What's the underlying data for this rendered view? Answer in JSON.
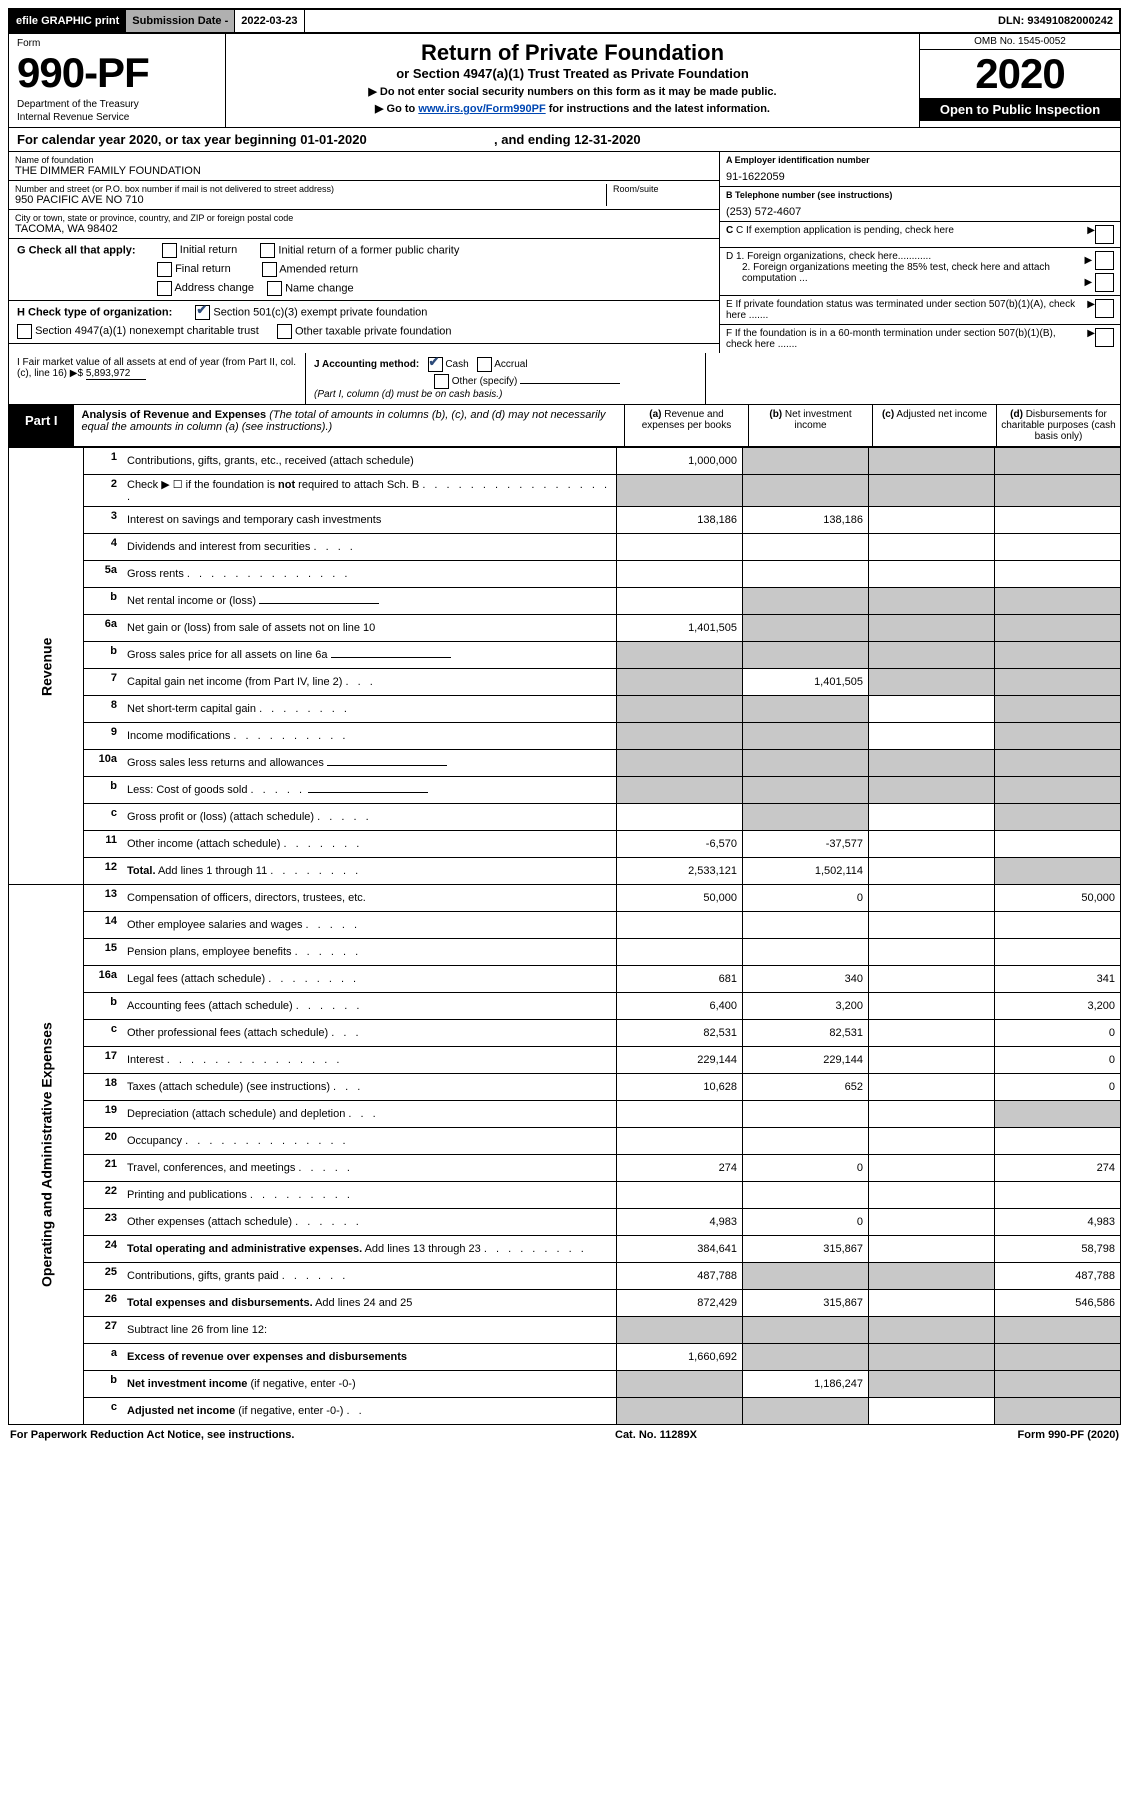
{
  "top": {
    "efile": "efile GRAPHIC print",
    "sub_lbl": "Submission Date - ",
    "sub_date": "2022-03-23",
    "dln": "DLN: 93491082000242"
  },
  "header": {
    "form_word": "Form",
    "form_num": "990-PF",
    "dept1": "Department of the Treasury",
    "dept2": "Internal Revenue Service",
    "title": "Return of Private Foundation",
    "sub1": "or Section 4947(a)(1) Trust Treated as Private Foundation",
    "sub2a": "▶ Do not enter social security numbers on this form as it may be made public.",
    "sub2b": "▶ Go to ",
    "link": "www.irs.gov/Form990PF",
    "sub2c": " for instructions and the latest information.",
    "omb": "OMB No. 1545-0052",
    "year": "2020",
    "open": "Open to Public Inspection"
  },
  "cal": {
    "text": "For calendar year 2020, or tax year beginning 01-01-2020",
    "ending": ", and ending 12-31-2020"
  },
  "info": {
    "name_lbl": "Name of foundation",
    "name": "THE DIMMER FAMILY FOUNDATION",
    "addr_lbl": "Number and street (or P.O. box number if mail is not delivered to street address)",
    "addr": "950 PACIFIC AVE NO 710",
    "room_lbl": "Room/suite",
    "city_lbl": "City or town, state or province, country, and ZIP or foreign postal code",
    "city": "TACOMA, WA  98402",
    "ein_lbl": "A Employer identification number",
    "ein": "91-1622059",
    "tel_lbl": "B Telephone number (see instructions)",
    "tel": "(253) 572-4607",
    "c_lbl": "C If exemption application is pending, check here",
    "d1": "D 1. Foreign organizations, check here............",
    "d2": "2. Foreign organizations meeting the 85% test, check here and attach computation ...",
    "e": "E  If private foundation status was terminated under section 507(b)(1)(A), check here .......",
    "f": "F  If the foundation is in a 60-month termination under section 507(b)(1)(B), check here .......",
    "g_lbl": "G Check all that apply:",
    "g_opts": [
      "Initial return",
      "Initial return of a former public charity",
      "Final return",
      "Amended return",
      "Address change",
      "Name change"
    ],
    "h_lbl": "H Check type of organization:",
    "h_opts": [
      "Section 501(c)(3) exempt private foundation",
      "Section 4947(a)(1) nonexempt charitable trust",
      "Other taxable private foundation"
    ],
    "i_lbl": "I Fair market value of all assets at end of year (from Part II, col. (c), line 16) ▶$ ",
    "i_val": "5,893,972",
    "j_lbl": "J Accounting method:",
    "j_cash": "Cash",
    "j_acc": "Accrual",
    "j_other": "Other (specify)",
    "j_note": "(Part I, column (d) must be on cash basis.)"
  },
  "part1": {
    "tab": "Part I",
    "title": "Analysis of Revenue and Expenses",
    "note": " (The total of amounts in columns (b), (c), and (d) may not necessarily equal the amounts in column (a) (see instructions).)",
    "cols": [
      "(a)  Revenue and expenses per books",
      "(b)  Net investment income",
      "(c)  Adjusted net income",
      "(d)  Disbursements for charitable purposes (cash basis only)"
    ]
  },
  "sides": {
    "rev": "Revenue",
    "exp": "Operating and Administrative Expenses"
  },
  "rows": [
    {
      "n": "1",
      "d": "Contributions, gifts, grants, etc., received (attach schedule)",
      "a": "1,000,000",
      "grey": [
        false,
        true,
        true,
        true
      ]
    },
    {
      "n": "2",
      "d": "Check ▶ ☐ if the foundation is <b>not</b> required to attach Sch. B",
      "dots": ". . . . . . . . . . . . . . . . .",
      "grey": [
        true,
        true,
        true,
        true
      ],
      "nobr": true
    },
    {
      "n": "3",
      "d": "Interest on savings and temporary cash investments",
      "a": "138,186",
      "b": "138,186"
    },
    {
      "n": "4",
      "d": "Dividends and interest from securities",
      "dots": ". . . ."
    },
    {
      "n": "5a",
      "d": "Gross rents",
      "dots": ". . . . . . . . . . . . . ."
    },
    {
      "n": "b",
      "d": "Net rental income or (loss)",
      "grey": [
        false,
        true,
        true,
        true
      ],
      "underline_after": true
    },
    {
      "n": "6a",
      "d": "Net gain or (loss) from sale of assets not on line 10",
      "a": "1,401,505",
      "grey": [
        false,
        true,
        true,
        true
      ]
    },
    {
      "n": "b",
      "d": "Gross sales price for all assets on line 6a",
      "grey": [
        true,
        true,
        true,
        true
      ],
      "underline_after": true
    },
    {
      "n": "7",
      "d": "Capital gain net income (from Part IV, line 2)",
      "dots": ". . .",
      "b": "1,401,505",
      "grey": [
        true,
        false,
        true,
        true
      ]
    },
    {
      "n": "8",
      "d": "Net short-term capital gain",
      "dots": ". . . . . . . .",
      "grey": [
        true,
        true,
        false,
        true
      ]
    },
    {
      "n": "9",
      "d": "Income modifications",
      "dots": ". . . . . . . . . .",
      "grey": [
        true,
        true,
        false,
        true
      ]
    },
    {
      "n": "10a",
      "d": "Gross sales less returns and allowances",
      "grey": [
        true,
        true,
        true,
        true
      ],
      "underline_after": true
    },
    {
      "n": "b",
      "d": "Less: Cost of goods sold",
      "dots": ". . . . .",
      "grey": [
        true,
        true,
        true,
        true
      ],
      "underline_after": true
    },
    {
      "n": "c",
      "d": "Gross profit or (loss) (attach schedule)",
      "dots": ". . . . .",
      "grey": [
        false,
        true,
        false,
        true
      ]
    },
    {
      "n": "11",
      "d": "Other income (attach schedule)",
      "dots": ". . . . . . .",
      "a": "-6,570",
      "b": "-37,577"
    },
    {
      "n": "12",
      "d": "<b>Total.</b> Add lines 1 through 11",
      "dots": ". . . . . . . .",
      "a": "2,533,121",
      "b": "1,502,114",
      "grey": [
        false,
        false,
        false,
        true
      ]
    }
  ],
  "exp_rows": [
    {
      "n": "13",
      "d": "Compensation of officers, directors, trustees, etc.",
      "a": "50,000",
      "b": "0",
      "e": "50,000"
    },
    {
      "n": "14",
      "d": "Other employee salaries and wages",
      "dots": ". . . . ."
    },
    {
      "n": "15",
      "d": "Pension plans, employee benefits",
      "dots": ". . . . . ."
    },
    {
      "n": "16a",
      "d": "Legal fees (attach schedule)",
      "dots": ". . . . . . . .",
      "a": "681",
      "b": "340",
      "e": "341"
    },
    {
      "n": "b",
      "d": "Accounting fees (attach schedule)",
      "dots": ". . . . . .",
      "a": "6,400",
      "b": "3,200",
      "e": "3,200"
    },
    {
      "n": "c",
      "d": "Other professional fees (attach schedule)",
      "dots": ". . .",
      "a": "82,531",
      "b": "82,531",
      "e": "0"
    },
    {
      "n": "17",
      "d": "Interest",
      "dots": ". . . . . . . . . . . . . . .",
      "a": "229,144",
      "b": "229,144",
      "e": "0"
    },
    {
      "n": "18",
      "d": "Taxes (attach schedule) (see instructions)",
      "dots": ". . .",
      "a": "10,628",
      "b": "652",
      "e": "0"
    },
    {
      "n": "19",
      "d": "Depreciation (attach schedule) and depletion",
      "dots": ". . .",
      "grey": [
        false,
        false,
        false,
        true
      ]
    },
    {
      "n": "20",
      "d": "Occupancy",
      "dots": ". . . . . . . . . . . . . ."
    },
    {
      "n": "21",
      "d": "Travel, conferences, and meetings",
      "dots": ". . . . .",
      "a": "274",
      "b": "0",
      "e": "274"
    },
    {
      "n": "22",
      "d": "Printing and publications",
      "dots": ". . . . . . . . ."
    },
    {
      "n": "23",
      "d": "Other expenses (attach schedule)",
      "dots": ". . . . . .",
      "a": "4,983",
      "b": "0",
      "e": "4,983"
    },
    {
      "n": "24",
      "d": "<b>Total operating and administrative expenses.</b> Add lines 13 through 23",
      "dots": ". . . . . . . . .",
      "a": "384,641",
      "b": "315,867",
      "e": "58,798"
    },
    {
      "n": "25",
      "d": "Contributions, gifts, grants paid",
      "dots": ". . . . . .",
      "a": "487,788",
      "grey": [
        false,
        true,
        true,
        false
      ],
      "e": "487,788"
    },
    {
      "n": "26",
      "d": "<b>Total expenses and disbursements.</b> Add lines 24 and 25",
      "a": "872,429",
      "b": "315,867",
      "e": "546,586"
    },
    {
      "n": "27",
      "d": "Subtract line 26 from line 12:",
      "grey": [
        true,
        true,
        true,
        true
      ]
    },
    {
      "n": "a",
      "d": "<b>Excess of revenue over expenses and disbursements</b>",
      "a": "1,660,692",
      "grey": [
        false,
        true,
        true,
        true
      ]
    },
    {
      "n": "b",
      "d": "<b>Net investment income</b> (if negative, enter -0-)",
      "grey": [
        true,
        false,
        true,
        true
      ],
      "b": "1,186,247"
    },
    {
      "n": "c",
      "d": "<b>Adjusted net income</b> (if negative, enter -0-)",
      "dots": ". .",
      "grey": [
        true,
        true,
        false,
        true
      ]
    }
  ],
  "footer": {
    "left": "For Paperwork Reduction Act Notice, see instructions.",
    "mid": "Cat. No. 11289X",
    "right": "Form 990-PF (2020)"
  }
}
